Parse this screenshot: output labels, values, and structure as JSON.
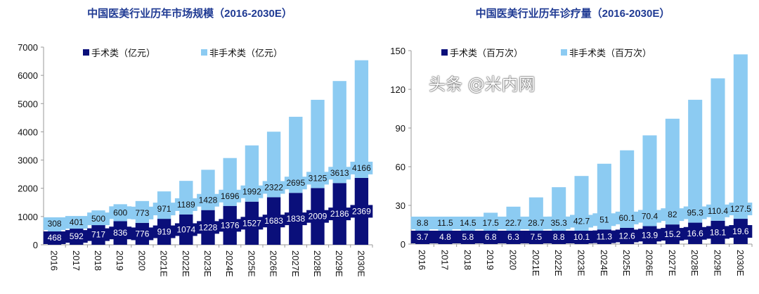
{
  "colors": {
    "surgical": "#0a0f7a",
    "non_surgical": "#8ccbf2",
    "title": "#1f3a93"
  },
  "watermark": "头条 @米内网",
  "chart_data": [
    {
      "type": "bar",
      "stacked": true,
      "title": "中国医美行业历年市场规模（2016-2030E）",
      "categories": [
        "2016",
        "2017",
        "2018",
        "2019",
        "2020",
        "2021E",
        "2022E",
        "2023E",
        "2024E",
        "2025E",
        "2026E",
        "2027E",
        "2028E",
        "2029E",
        "2030E"
      ],
      "ylim": [
        0,
        7000
      ],
      "yticks": [
        0,
        1000,
        2000,
        3000,
        4000,
        5000,
        6000,
        7000
      ],
      "legend": "top",
      "series": [
        {
          "name": "手术类（亿元）",
          "values": [
            468,
            592,
            717,
            836,
            776,
            919,
            1074,
            1228,
            1376,
            1527,
            1683,
            1838,
            2009,
            2186,
            2369
          ]
        },
        {
          "name": "非手术类（亿元）",
          "values": [
            308,
            401,
            500,
            600,
            773,
            971,
            1189,
            1428,
            1696,
            1992,
            2322,
            2695,
            3125,
            3613,
            4166
          ]
        }
      ]
    },
    {
      "type": "bar",
      "stacked": true,
      "title": "中国医美行业历年诊疗量（2016-2030E）",
      "categories": [
        "2016",
        "2017",
        "2018",
        "2019",
        "2020",
        "2021E",
        "2022E",
        "2023E",
        "2024E",
        "2025E",
        "2026E",
        "2027E",
        "2028E",
        "2029E",
        "2030E"
      ],
      "ylim": [
        0,
        150
      ],
      "yticks": [
        0,
        30,
        60,
        90,
        120,
        150
      ],
      "legend": "top",
      "series": [
        {
          "name": "手术类（百万次）",
          "values": [
            3.7,
            4.8,
            5.8,
            6.8,
            6.3,
            7.5,
            8.8,
            10.1,
            11.3,
            12.6,
            13.9,
            15.2,
            16.6,
            18.1,
            19.6
          ]
        },
        {
          "name": "非手术类（百万次）",
          "values": [
            8.8,
            11.5,
            14.5,
            17.5,
            22.7,
            28.7,
            35.3,
            42.7,
            51,
            60.1,
            70.4,
            82,
            95.3,
            110.4,
            127.5
          ]
        }
      ]
    }
  ]
}
